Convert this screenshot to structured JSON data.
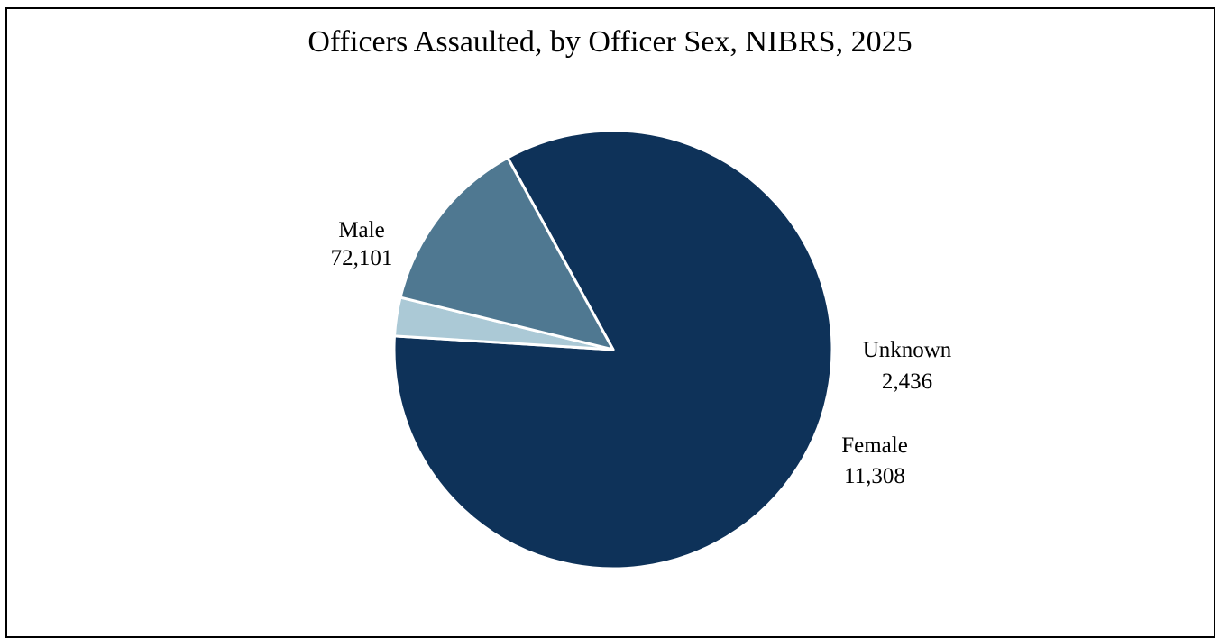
{
  "chart_data": {
    "type": "pie",
    "title": "Officers Assaulted, by Officer Sex, NIBRS, 2025",
    "slices": [
      {
        "label": "Male",
        "value": 72101,
        "value_text": "72,101",
        "color": "#0e3259"
      },
      {
        "label": "Unknown",
        "value": 2436,
        "value_text": "2,436",
        "color": "#abc9d6"
      },
      {
        "label": "Female",
        "value": 11308,
        "value_text": "11,308",
        "color": "#4f7891"
      }
    ],
    "legend": "none",
    "data_labels": "category and value"
  }
}
